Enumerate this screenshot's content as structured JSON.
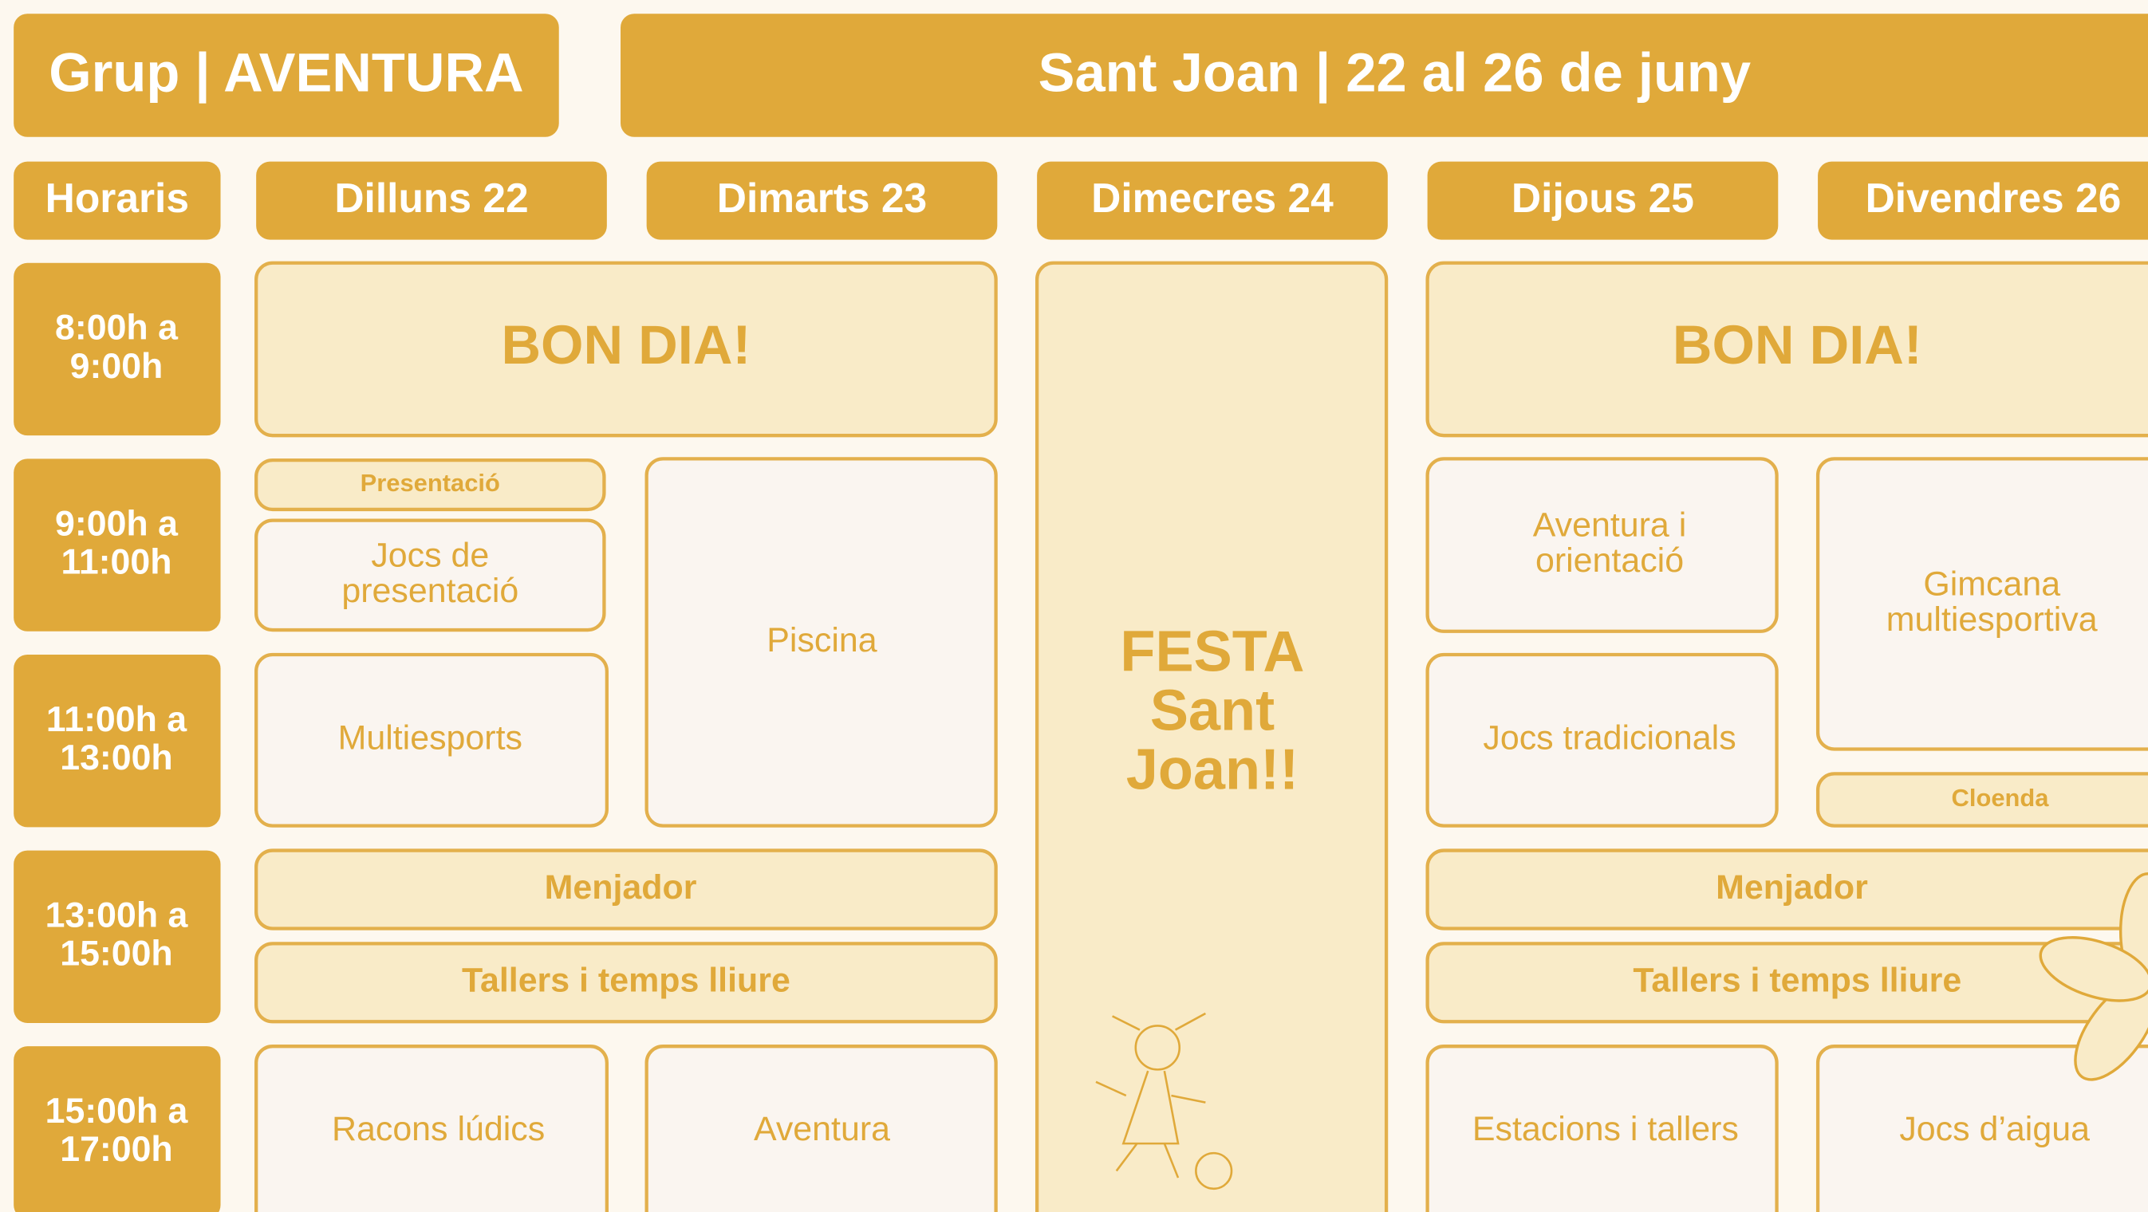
{
  "header": {
    "group": "Grup | AVENTURA",
    "week": "Sant Joan | 22 al 26 de juny"
  },
  "columns": [
    "Horaris",
    "Dilluns 22",
    "Dimarts 23",
    "Dimecres 24",
    "Dijous 25",
    "Divendres 26"
  ],
  "times": [
    [
      "8:00h a",
      "9:00h"
    ],
    [
      "9:00h a",
      "11:00h"
    ],
    [
      "11:00h a",
      "13:00h"
    ],
    [
      "13:00h a",
      "15:00h"
    ],
    [
      "15:00h a",
      "17:00h"
    ]
  ],
  "cells": [
    [
      "BON DIA!"
    ],
    [
      "Presentació"
    ],
    [
      "Jocs de",
      "presentació"
    ],
    [
      "Piscina"
    ],
    [
      "Multiesports"
    ],
    [
      "Menjador"
    ],
    [
      "Tallers i temps lliure"
    ],
    [
      "Racons lúdics"
    ],
    [
      "Aventura"
    ],
    [
      "FESTA",
      "Sant",
      "Joan!!"
    ],
    [
      "BON DIA!"
    ],
    [
      "Aventura i",
      "orientació"
    ],
    [
      "Jocs tradicionals"
    ],
    [
      "Gimcana",
      "multiesportiva"
    ],
    [
      "Cloenda"
    ],
    [
      "Menjador"
    ],
    [
      "Tallers i temps lliure"
    ],
    [
      "Estacions i tallers"
    ],
    [
      "Jocs d’aigua"
    ]
  ]
}
